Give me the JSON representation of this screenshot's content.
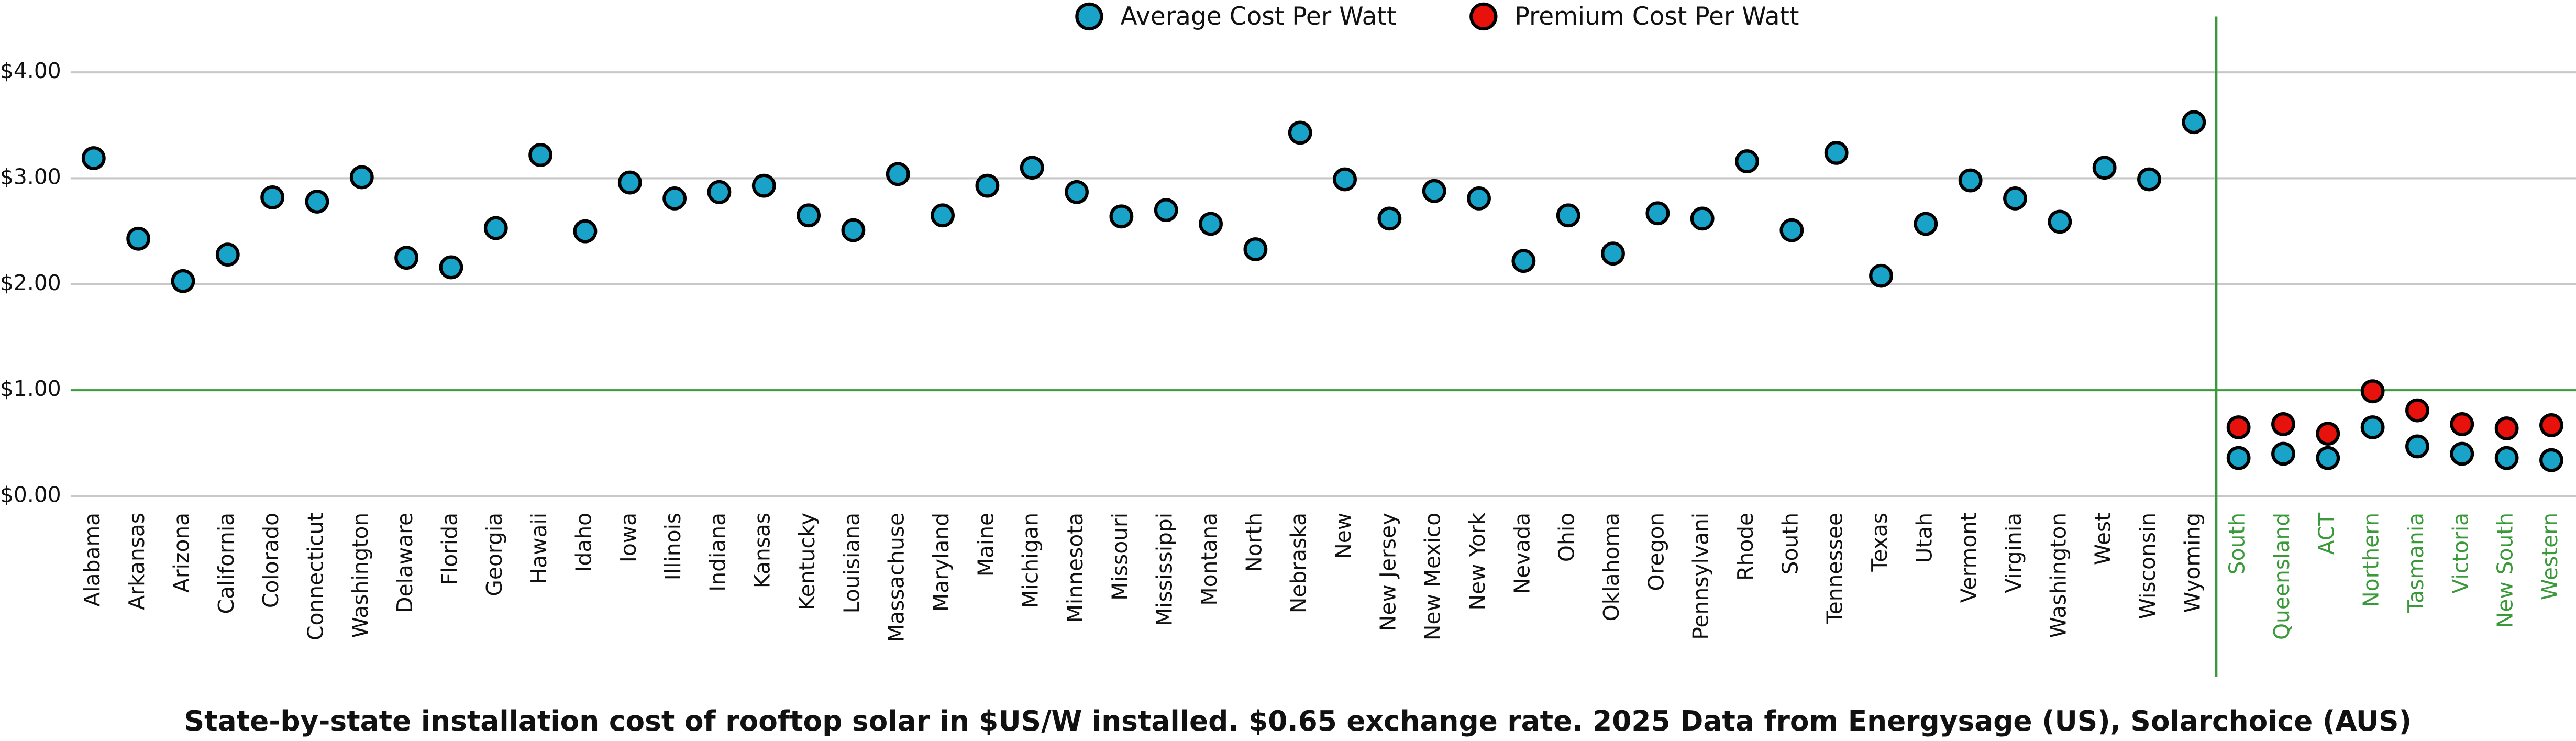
{
  "chart_data": {
    "type": "scatter",
    "title": "State-by-state installation cost of rooftop solar in $US/W installed.  $0.65 exchange rate.  2025 Data from Energysage (US), Solarchoice (AUS)",
    "categories": [
      "Alabama",
      "Arkansas",
      "Arizona",
      "California",
      "Colorado",
      "Connecticut",
      "Washington",
      "Delaware",
      "Florida",
      "Georgia",
      "Hawaii",
      "Idaho",
      "Iowa",
      "Illinois",
      "Indiana",
      "Kansas",
      "Kentucky",
      "Louisiana",
      "Massachuse",
      "Maryland",
      "Maine",
      "Michigan",
      "Minnesota",
      "Missouri",
      "Mississippi",
      "Montana",
      "North",
      "Nebraska",
      "New",
      "New Jersey",
      "New Mexico",
      "New York",
      "Nevada",
      "Ohio",
      "Oklahoma",
      "Oregon",
      "Pennsylvani",
      "Rhode",
      "South",
      "Tennessee",
      "Texas",
      "Utah",
      "Vermont",
      "Virginia",
      "Washington",
      "West",
      "Wisconsin",
      "Wyoming",
      "South",
      "Queensland",
      "ACT",
      "Northern",
      "Tasmania",
      "Victoria",
      "New South",
      "Western"
    ],
    "series": [
      {
        "name": "Average Cost Per Watt",
        "color": "#1aa3c8",
        "values": [
          3.19,
          2.43,
          2.03,
          2.28,
          2.82,
          2.78,
          3.01,
          2.25,
          2.16,
          2.53,
          3.22,
          2.5,
          2.96,
          2.81,
          2.87,
          2.93,
          2.65,
          2.51,
          3.04,
          2.65,
          2.93,
          3.1,
          2.87,
          2.64,
          2.7,
          2.57,
          2.33,
          3.43,
          2.99,
          2.62,
          2.88,
          2.81,
          2.22,
          2.65,
          2.29,
          2.67,
          2.62,
          3.16,
          2.51,
          3.24,
          2.08,
          2.57,
          2.98,
          2.81,
          2.59,
          3.1,
          2.99,
          3.53,
          0.36,
          0.4,
          0.36,
          0.65,
          0.47,
          0.4,
          0.36,
          0.34
        ]
      },
      {
        "name": "Premium Cost Per Watt",
        "color": "#e8120c",
        "values": [
          null,
          null,
          null,
          null,
          null,
          null,
          null,
          null,
          null,
          null,
          null,
          null,
          null,
          null,
          null,
          null,
          null,
          null,
          null,
          null,
          null,
          null,
          null,
          null,
          null,
          null,
          null,
          null,
          null,
          null,
          null,
          null,
          null,
          null,
          null,
          null,
          null,
          null,
          null,
          null,
          null,
          null,
          null,
          null,
          null,
          null,
          null,
          null,
          0.65,
          0.68,
          0.59,
          0.99,
          0.81,
          0.68,
          0.64,
          0.67
        ]
      }
    ],
    "ylim": [
      0,
      4
    ],
    "yticks": [
      {
        "value": 0,
        "label": "$0.00"
      },
      {
        "value": 1,
        "label": "$1.00"
      },
      {
        "value": 2,
        "label": "$2.00"
      },
      {
        "value": 3,
        "label": "$3.00"
      },
      {
        "value": 4,
        "label": "$4.00"
      }
    ],
    "grid": true,
    "grid_colors": [
      "#c8c8c8",
      "#3a9a3a",
      "#c8c8c8",
      "#c8c8c8",
      "#c8c8c8"
    ],
    "group_color": "#3a9a3a",
    "legend": "top"
  }
}
